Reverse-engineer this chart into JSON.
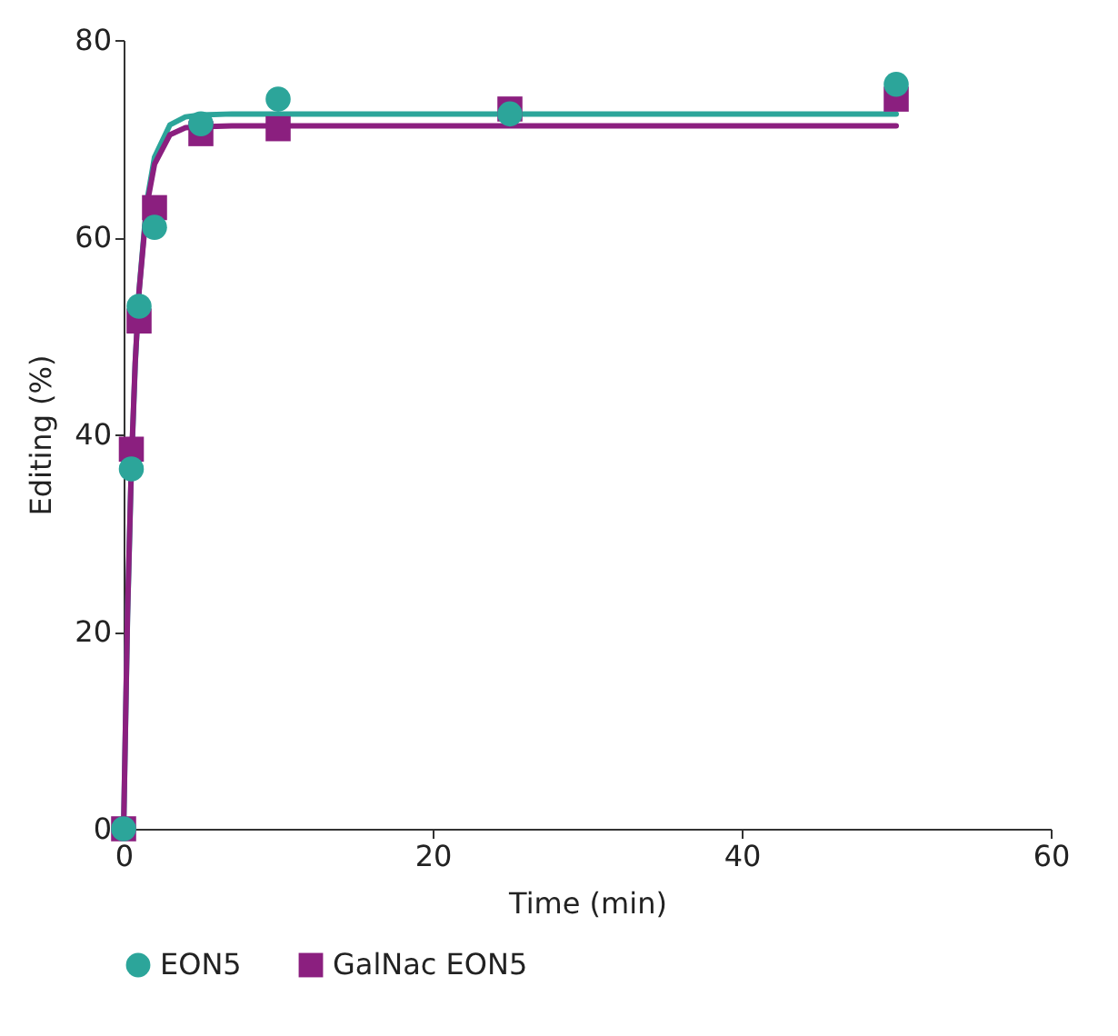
{
  "chart_data": {
    "type": "scatter",
    "xlabel": "Time (min)",
    "ylabel": "Editing (%)",
    "xlim": [
      0,
      60
    ],
    "xticks": [
      0,
      20,
      40,
      60
    ],
    "ylim": [
      0,
      80
    ],
    "yticks": [
      0,
      20,
      40,
      60,
      80
    ],
    "grid": false,
    "legend": "bottom",
    "series": [
      {
        "type": "line",
        "color": "#2ca59a",
        "marker": "none",
        "x": [
          0,
          0.25,
          0.5,
          0.75,
          1,
          1.5,
          2,
          3,
          4,
          5,
          7,
          10,
          20,
          50
        ],
        "values": [
          0,
          21.4,
          36.5,
          47.1,
          54.6,
          63.6,
          68.1,
          71.4,
          72.2,
          72.4,
          72.5,
          72.5,
          72.5,
          72.5
        ]
      },
      {
        "type": "line",
        "color": "#8b1f7f",
        "marker": "none",
        "x": [
          0,
          0.25,
          0.5,
          0.75,
          1,
          1.5,
          2,
          3,
          4,
          5,
          7,
          10,
          20,
          50
        ],
        "values": [
          0,
          21.7,
          36.8,
          47.3,
          54.5,
          63.2,
          67.4,
          70.4,
          71.1,
          71.2,
          71.3,
          71.3,
          71.3,
          71.3
        ]
      },
      {
        "name": "EON5",
        "color": "#2ca59a",
        "marker": "circle",
        "x": [
          0,
          0.5,
          1,
          2,
          5,
          10,
          25,
          50
        ],
        "values": [
          0,
          36.5,
          53,
          61,
          71.5,
          74,
          72.5,
          75.5
        ]
      },
      {
        "name": "GalNac EON5",
        "color": "#8b1f7f",
        "marker": "square",
        "x": [
          0,
          0.5,
          1,
          2,
          5,
          10,
          25,
          50
        ],
        "values": [
          0,
          38.5,
          51.5,
          63,
          70.5,
          71,
          73,
          74
        ]
      }
    ]
  }
}
